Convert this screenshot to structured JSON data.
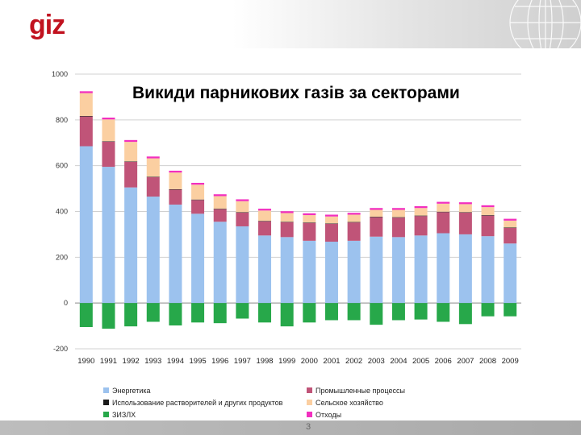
{
  "header": {
    "logo": "giz",
    "globe_icon": "globe-icon"
  },
  "footer": {
    "page_number": "3"
  },
  "colors": {
    "energy": "#9cc2ee",
    "industry": "#c05478",
    "solvents": "#1a1a1a",
    "agriculture": "#fbcfa1",
    "lulucf": "#27a84a",
    "waste": "#f22fbf"
  },
  "chart_data": {
    "type": "bar",
    "stacked": true,
    "title": "Викиди парникових газів за секторами",
    "xlabel": "",
    "ylabel": "",
    "ylim": [
      -200,
      1000
    ],
    "yticks": [
      -200,
      0,
      200,
      400,
      600,
      800,
      1000
    ],
    "grid": true,
    "legend_position": "bottom",
    "categories": [
      "1990",
      "1991",
      "1992",
      "1993",
      "1994",
      "1995",
      "1996",
      "1997",
      "1998",
      "1999",
      "2000",
      "2001",
      "2002",
      "2003",
      "2004",
      "2005",
      "2006",
      "2007",
      "2008",
      "2009"
    ],
    "series": [
      {
        "name": "Энергетика",
        "color_key": "energy",
        "values": [
          685,
          595,
          505,
          465,
          430,
          390,
          355,
          335,
          295,
          288,
          272,
          268,
          272,
          290,
          288,
          295,
          305,
          300,
          292,
          260
        ]
      },
      {
        "name": "Промышленные процессы",
        "color_key": "industry",
        "values": [
          130,
          110,
          112,
          85,
          65,
          60,
          55,
          60,
          62,
          65,
          78,
          78,
          80,
          85,
          85,
          85,
          92,
          95,
          90,
          68
        ]
      },
      {
        "name": "Использование растворителей и других продуктов",
        "color_key": "solvents",
        "values": [
          2,
          2,
          2,
          2,
          2,
          2,
          2,
          2,
          2,
          2,
          2,
          2,
          2,
          2,
          2,
          2,
          2,
          2,
          2,
          2
        ]
      },
      {
        "name": "Сельское хозяйство",
        "color_key": "agriculture",
        "values": [
          100,
          95,
          85,
          80,
          73,
          65,
          55,
          48,
          45,
          38,
          32,
          30,
          32,
          30,
          32,
          33,
          35,
          35,
          35,
          30
        ]
      },
      {
        "name": "Отходы",
        "color_key": "waste",
        "values": [
          8,
          8,
          8,
          8,
          8,
          8,
          8,
          8,
          8,
          8,
          8,
          8,
          8,
          8,
          8,
          8,
          8,
          8,
          8,
          8
        ]
      },
      {
        "name": "ЗИЗЛХ",
        "color_key": "lulucf",
        "values": [
          -105,
          -112,
          -102,
          -82,
          -98,
          -85,
          -88,
          -68,
          -85,
          -102,
          -85,
          -75,
          -75,
          -95,
          -75,
          -72,
          -82,
          -92,
          -58,
          -58
        ]
      }
    ],
    "legend": [
      {
        "label": "Энергетика",
        "color_key": "energy"
      },
      {
        "label": "Промышленные процессы",
        "color_key": "industry"
      },
      {
        "label": "Использование растворителей и других продуктов",
        "color_key": "solvents"
      },
      {
        "label": "Сельское хозяйство",
        "color_key": "agriculture"
      },
      {
        "label": "ЗИЗЛХ",
        "color_key": "lulucf"
      },
      {
        "label": "Отходы",
        "color_key": "waste"
      }
    ]
  }
}
